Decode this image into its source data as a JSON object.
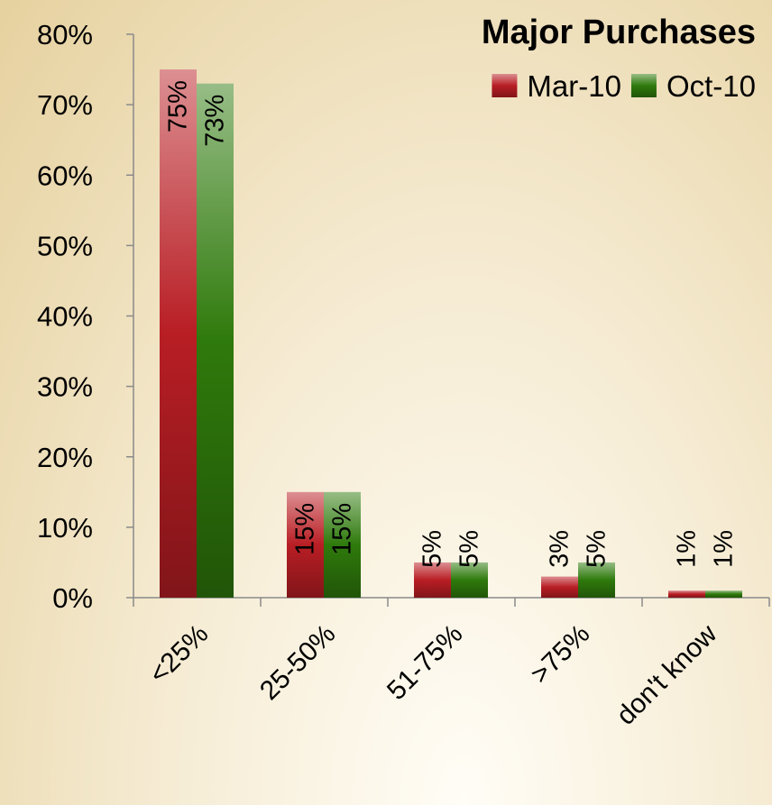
{
  "chart_data": {
    "type": "bar",
    "title": "Major Purchases",
    "categories": [
      "<25%",
      "25-50%",
      "51-75%",
      ">75%",
      "don't know"
    ],
    "series": [
      {
        "name": "Mar-10",
        "color": "#b81e24",
        "values": [
          75,
          15,
          5,
          3,
          1
        ],
        "value_labels": [
          "75%",
          "15%",
          "5%",
          "3%",
          "1%"
        ]
      },
      {
        "name": "Oct-10",
        "color": "#2f7a0c",
        "values": [
          73,
          15,
          5,
          5,
          1
        ],
        "value_labels": [
          "73%",
          "15%",
          "5%",
          "5%",
          "1%"
        ]
      }
    ],
    "ylim": [
      0,
      80
    ],
    "yticks": [
      {
        "value": 0,
        "label": "0%"
      },
      {
        "value": 10,
        "label": "10%"
      },
      {
        "value": 20,
        "label": "20%"
      },
      {
        "value": 30,
        "label": "30%"
      },
      {
        "value": 40,
        "label": "40%"
      },
      {
        "value": 50,
        "label": "50%"
      },
      {
        "value": 60,
        "label": "60%"
      },
      {
        "value": 70,
        "label": "70%"
      },
      {
        "value": 80,
        "label": "80%"
      }
    ],
    "legend": "top-right",
    "grid": false
  }
}
